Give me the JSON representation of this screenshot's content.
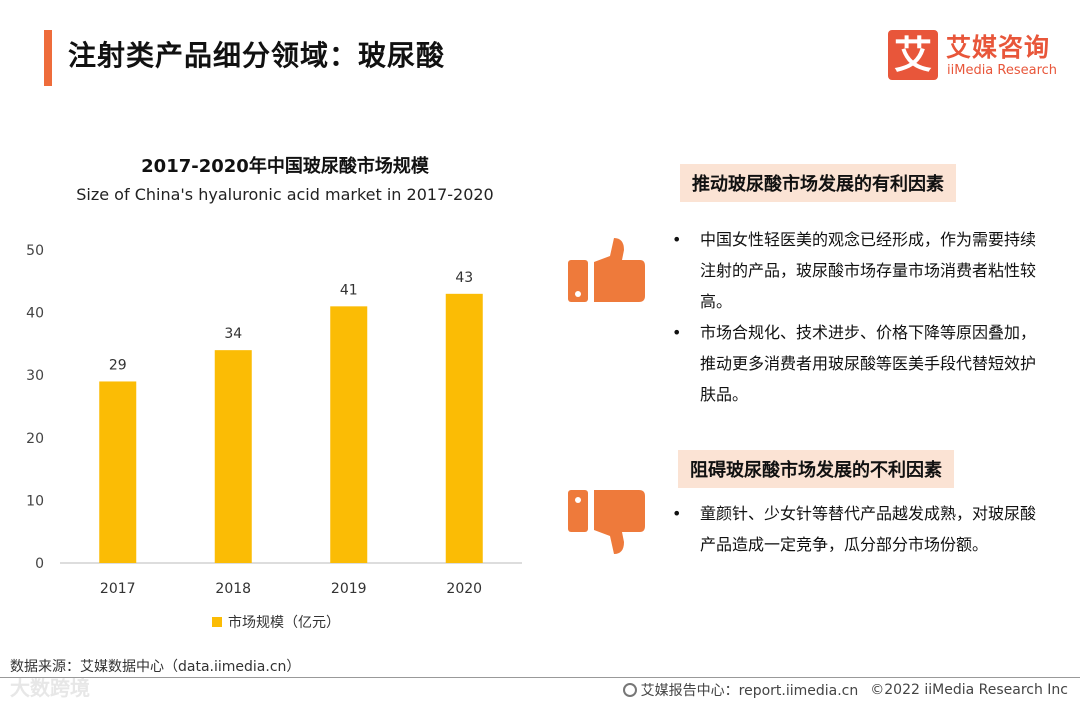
{
  "page": {
    "title": "注射类产品细分领域：玻尿酸"
  },
  "logo": {
    "mark": "艾",
    "cn": "艾媒咨询",
    "en": "iiMedia Research"
  },
  "chart_data": {
    "type": "bar",
    "title": "2017-2020年中国玻尿酸市场规模",
    "subtitle": "Size of China's hyaluronic acid market in 2017-2020",
    "categories": [
      "2017",
      "2018",
      "2019",
      "2020"
    ],
    "series": [
      {
        "name": "市场规模（亿元）",
        "values": [
          29,
          34,
          41,
          43
        ],
        "color": "#fbbc05"
      }
    ],
    "ylim": [
      0,
      50
    ],
    "yticks": [
      0,
      10,
      20,
      30,
      40,
      50
    ],
    "data_labels": true,
    "grid": false,
    "legend": "bottom"
  },
  "favorable": {
    "heading": "推动玻尿酸市场发展的有利因素",
    "icon": "thumbs-up-icon",
    "items": [
      "中国女性轻医美的观念已经形成，作为需要持续注射的产品，玻尿酸市场存量市场消费者粘性较高。",
      "市场合规化、技术进步、价格下降等原因叠加，推动更多消费者用玻尿酸等医美手段代替短效护肤品。"
    ]
  },
  "unfavorable": {
    "heading": "阻碍玻尿酸市场发展的不利因素",
    "icon": "thumbs-down-icon",
    "items": [
      "童颜针、少女针等替代产品越发成熟，对玻尿酸产品造成一定竞争，瓜分部分市场份额。"
    ]
  },
  "colors": {
    "accent": "#ee6c3b",
    "bar": "#fbbc05",
    "heading_bg": "#fbe3d4"
  },
  "footer": {
    "source": "数据来源：艾媒数据中心（data.iimedia.cn）",
    "report": "艾媒报告中心：report.iimedia.cn",
    "copyright": "©2022  iiMedia Research  Inc",
    "watermark": "大数跨境"
  }
}
